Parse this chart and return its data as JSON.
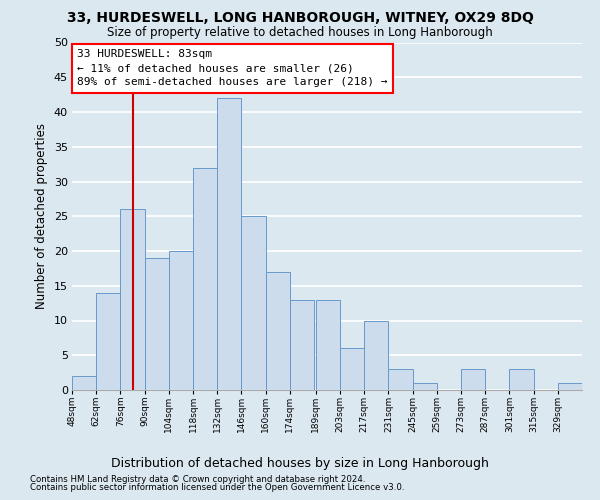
{
  "title": "33, HURDESWELL, LONG HANBOROUGH, WITNEY, OX29 8DQ",
  "subtitle": "Size of property relative to detached houses in Long Hanborough",
  "xlabel": "Distribution of detached houses by size in Long Hanborough",
  "ylabel": "Number of detached properties",
  "footnote1": "Contains HM Land Registry data © Crown copyright and database right 2024.",
  "footnote2": "Contains public sector information licensed under the Open Government Licence v3.0.",
  "bar_color": "#ccdcec",
  "bar_edge_color": "#6699cc",
  "bg_color": "#dce8f0",
  "plot_bg_color": "#dce8f0",
  "grid_color": "#ffffff",
  "annotation_text": "33 HURDESWELL: 83sqm\n← 11% of detached houses are smaller (26)\n89% of semi-detached houses are larger (218) →",
  "vline_color": "#cc0000",
  "vline_x": 83,
  "bin_edges": [
    48,
    62,
    76,
    90,
    104,
    118,
    132,
    146,
    160,
    174,
    189,
    203,
    217,
    231,
    245,
    259,
    273,
    287,
    301,
    315,
    329
  ],
  "bin_labels": [
    "48sqm",
    "62sqm",
    "76sqm",
    "90sqm",
    "104sqm",
    "118sqm",
    "132sqm",
    "146sqm",
    "160sqm",
    "174sqm",
    "189sqm",
    "203sqm",
    "217sqm",
    "231sqm",
    "245sqm",
    "259sqm",
    "273sqm",
    "287sqm",
    "301sqm",
    "315sqm",
    "329sqm"
  ],
  "bar_heights": [
    2,
    14,
    26,
    19,
    20,
    32,
    42,
    25,
    17,
    13,
    13,
    6,
    10,
    3,
    1,
    0,
    3,
    0,
    3,
    0,
    1
  ],
  "ylim": [
    0,
    50
  ],
  "yticks": [
    0,
    5,
    10,
    15,
    20,
    25,
    30,
    35,
    40,
    45,
    50
  ]
}
